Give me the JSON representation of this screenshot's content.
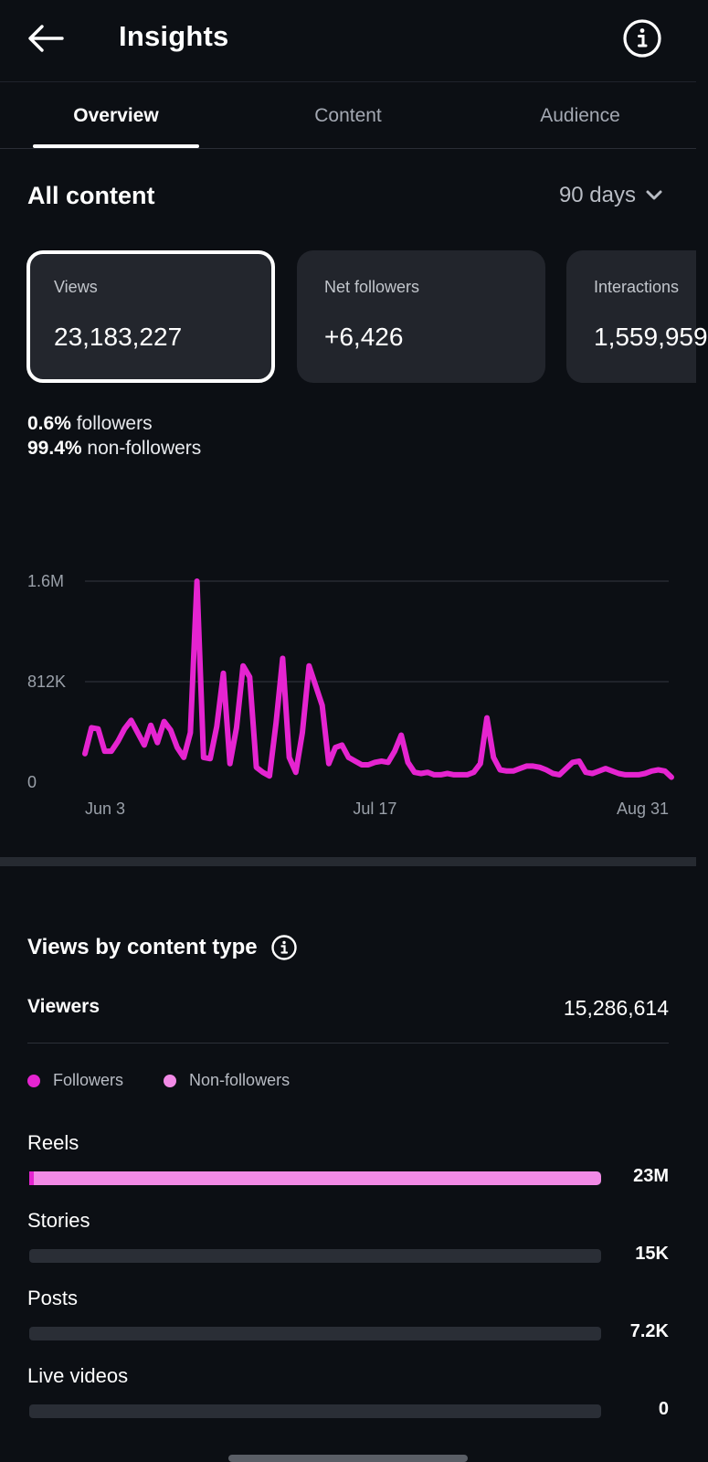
{
  "header": {
    "title": "Insights",
    "back_icon": "arrow-left-icon",
    "info_icon": "info-circle-icon"
  },
  "tabs": [
    {
      "label": "Overview",
      "active": true
    },
    {
      "label": "Content",
      "active": false
    },
    {
      "label": "Audience",
      "active": false
    }
  ],
  "overview": {
    "section_title": "All content",
    "range_label": "90 days",
    "metrics": [
      {
        "label": "Views",
        "value": "23,183,227",
        "selected": true
      },
      {
        "label": "Net followers",
        "value": "+6,426",
        "selected": false
      },
      {
        "label": "Interactions",
        "value": "1,559,959",
        "selected": false
      }
    ],
    "split": {
      "followers_pct": "0.6%",
      "followers_label": "followers",
      "nonfollowers_pct": "99.4%",
      "nonfollowers_label": "non-followers"
    }
  },
  "chart_data": {
    "type": "line",
    "color": "#e524d0",
    "y_tick_labels": [
      "1.6M",
      "812K",
      "0"
    ],
    "y_ticks": [
      1624000,
      812000,
      0
    ],
    "ylim": [
      0,
      1624000
    ],
    "x_tick_labels": [
      "Jun 3",
      "Jul 17",
      "Aug 31"
    ],
    "x_tick_index": [
      0,
      44,
      89
    ],
    "grid": true,
    "values": [
      230000,
      440000,
      430000,
      250000,
      250000,
      330000,
      430000,
      500000,
      400000,
      300000,
      460000,
      320000,
      490000,
      420000,
      280000,
      200000,
      400000,
      1624000,
      200000,
      190000,
      450000,
      880000,
      150000,
      440000,
      940000,
      850000,
      120000,
      80000,
      50000,
      480000,
      1000000,
      200000,
      80000,
      400000,
      940000,
      780000,
      620000,
      150000,
      280000,
      300000,
      200000,
      170000,
      140000,
      140000,
      160000,
      170000,
      160000,
      250000,
      380000,
      160000,
      80000,
      70000,
      80000,
      60000,
      60000,
      70000,
      60000,
      60000,
      60000,
      80000,
      150000,
      520000,
      200000,
      100000,
      90000,
      90000,
      110000,
      130000,
      130000,
      120000,
      100000,
      70000,
      60000,
      110000,
      160000,
      170000,
      80000,
      70000,
      90000,
      110000,
      90000,
      70000,
      60000,
      60000,
      60000,
      70000,
      90000,
      100000,
      90000,
      40000
    ]
  },
  "content_type": {
    "title": "Views by content type",
    "info_icon": "info-circle-icon",
    "viewers_label": "Viewers",
    "viewers_value": "15,286,614",
    "legend": [
      {
        "label": "Followers",
        "color": "#e524d0"
      },
      {
        "label": "Non-followers",
        "color": "#f28ae6"
      }
    ],
    "items": [
      {
        "label": "Reels",
        "value": "23M",
        "followers_fraction": 0.006,
        "nonfollowers_fraction": 0.994,
        "share": 1.0
      },
      {
        "label": "Stories",
        "value": "15K",
        "followers_fraction": 0,
        "nonfollowers_fraction": 0,
        "share": 0.001
      },
      {
        "label": "Posts",
        "value": "7.2K",
        "followers_fraction": 0,
        "nonfollowers_fraction": 0,
        "share": 0.0003
      },
      {
        "label": "Live videos",
        "value": "0",
        "followers_fraction": 0,
        "nonfollowers_fraction": 0,
        "share": 0
      }
    ]
  }
}
